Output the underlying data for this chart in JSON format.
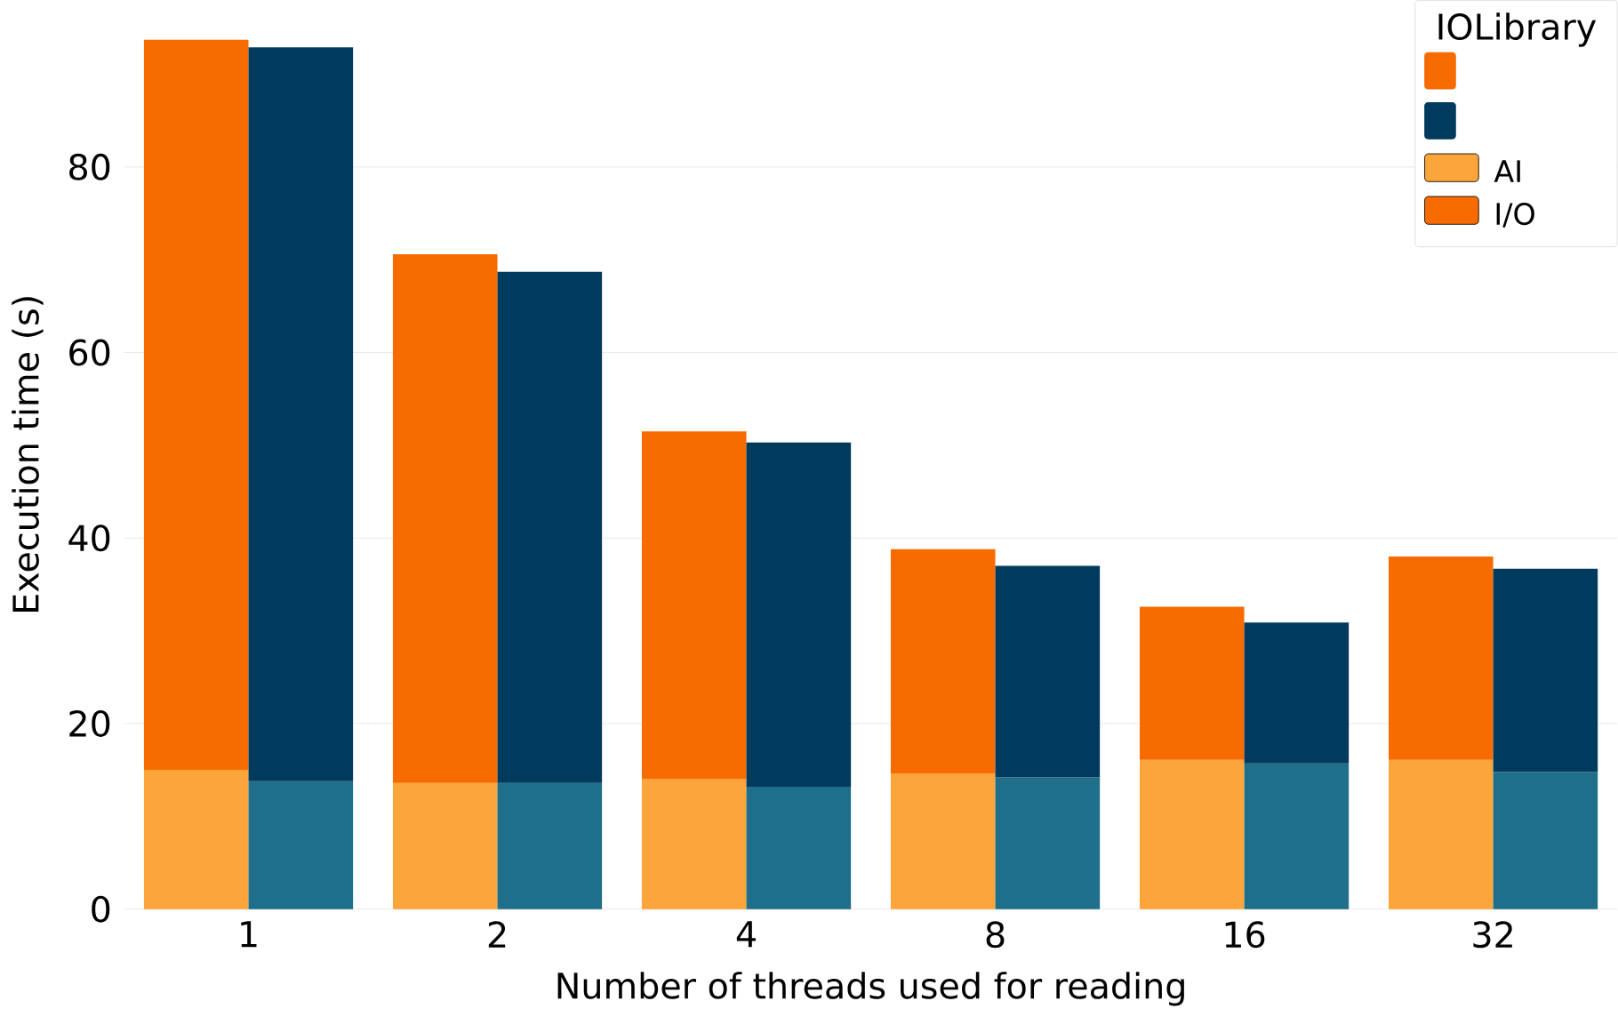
{
  "chart_data": {
    "type": "bar",
    "xlabel": "Number of threads used for reading",
    "ylabel": "Execution time (s)",
    "legend_title": "IOLibrary",
    "categories": [
      "1",
      "2",
      "4",
      "8",
      "16",
      "32"
    ],
    "series": [
      {
        "name": "AI",
        "color": "#fba53a",
        "values": [
          15,
          13.6,
          14,
          14.6,
          16.1,
          16.1
        ],
        "base": [
          0,
          0,
          0,
          0,
          0,
          0
        ]
      },
      {
        "name": "I/O",
        "color": "#f76b00",
        "values": [
          78.7,
          57,
          37.5,
          24.2,
          16.5,
          21.9
        ],
        "base": [
          15,
          13.6,
          14,
          14.6,
          16.1,
          16.1
        ]
      },
      {
        "color": "#1f6f8b",
        "values": [
          13.8,
          13.6,
          13.2,
          14.2,
          15.7,
          14.8
        ],
        "base": [
          0,
          0,
          0,
          0,
          0,
          0
        ]
      },
      {
        "color": "#003a5c",
        "values": [
          79.1,
          55.1,
          37.1,
          22.8,
          15.2,
          21.9
        ],
        "base": [
          13.8,
          13.6,
          13.2,
          14.2,
          15.7,
          14.8
        ]
      }
    ],
    "ylim": [
      0,
      98
    ],
    "yticks": [
      0,
      20,
      40,
      60,
      80
    ],
    "grid": "y",
    "legend": "top right"
  }
}
